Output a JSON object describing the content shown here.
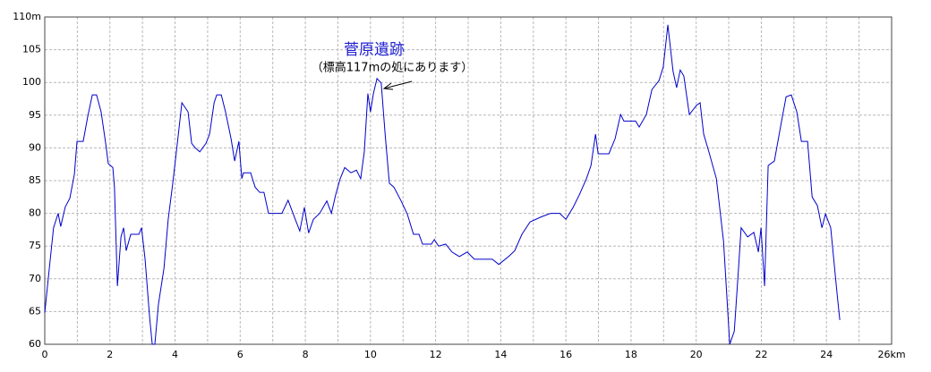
{
  "chart_data": {
    "type": "line",
    "annotations": [
      "菅原遺跡",
      "（標高117mの処にあります）"
    ],
    "xlim": [
      0,
      26
    ],
    "xticks": [
      0,
      2,
      4,
      6,
      8,
      10,
      12,
      14,
      16,
      18,
      20,
      22,
      24,
      {
        "value": 26,
        "label": "26km"
      }
    ],
    "x_minor_ticks": [
      1,
      3,
      5,
      7,
      9,
      11,
      13,
      15,
      17,
      19,
      21,
      23,
      25
    ],
    "ylim": [
      60,
      110
    ],
    "yticks": [
      60,
      65,
      70,
      75,
      80,
      85,
      90,
      95,
      100,
      105,
      {
        "value": 110,
        "label": "110m"
      }
    ],
    "grid": true,
    "color": "#0000cc",
    "x": [
      0,
      0.14,
      0.27,
      0.41,
      0.49,
      0.63,
      0.77,
      0.91,
      0.99,
      1.18,
      1.32,
      1.46,
      1.59,
      1.73,
      1.87,
      1.95,
      2.09,
      2.14,
      2.23,
      2.34,
      2.42,
      2.5,
      2.64,
      2.89,
      2.97,
      3.08,
      3.22,
      3.3,
      3.38,
      3.49,
      3.66,
      3.79,
      3.93,
      4.07,
      4.21,
      4.4,
      4.51,
      4.62,
      4.76,
      4.95,
      5.06,
      5.2,
      5.28,
      5.42,
      5.55,
      5.72,
      5.83,
      5.96,
      6.05,
      6.1,
      6.32,
      6.46,
      6.6,
      6.73,
      6.87,
      7.28,
      7.47,
      7.69,
      7.83,
      7.97,
      8.1,
      8.25,
      8.44,
      8.66,
      8.8,
      8.93,
      9.07,
      9.21,
      9.4,
      9.57,
      9.7,
      9.81,
      9.92,
      10,
      10.09,
      10.2,
      10.33,
      10.45,
      10.58,
      10.72,
      10.94,
      11.13,
      11.32,
      11.49,
      11.6,
      11.87,
      11.96,
      12.09,
      12.31,
      12.5,
      12.73,
      12.97,
      13.19,
      13.74,
      13.94,
      14.24,
      14.43,
      14.65,
      14.9,
      15.26,
      15.53,
      15.81,
      16,
      16.22,
      16.41,
      16.63,
      16.77,
      16.91,
      16.99,
      17.32,
      17.51,
      17.68,
      17.78,
      18.14,
      18.25,
      18.47,
      18.64,
      18.86,
      18.99,
      19.13,
      19.29,
      19.4,
      19.51,
      19.62,
      19.79,
      20.01,
      20.12,
      20.23,
      20.39,
      20.62,
      20.84,
      21.03,
      21.17,
      21.3,
      21.38,
      21.58,
      21.77,
      21.91,
      21.99,
      22.1,
      22.21,
      22.4,
      22.6,
      22.76,
      22.92,
      23.09,
      23.23,
      23.42,
      23.56,
      23.72,
      23.86,
      23.97,
      24.13,
      24.33,
      24.41
    ],
    "values": [
      64.8,
      71.6,
      77.8,
      80,
      78,
      81,
      82.3,
      86,
      91,
      91,
      94.8,
      98.1,
      98.1,
      95.5,
      90.7,
      87.6,
      87,
      84,
      68.9,
      76.4,
      77.8,
      74.3,
      76.8,
      76.8,
      77.8,
      73,
      64.1,
      60,
      60,
      66.1,
      71.6,
      79.1,
      84.6,
      90.7,
      96.9,
      95.5,
      90.7,
      90,
      89.4,
      90.7,
      92.1,
      96.9,
      98.1,
      98.1,
      95.5,
      91.4,
      88,
      91,
      85.3,
      86.2,
      86.2,
      84,
      83.2,
      83.2,
      80,
      80,
      82,
      79.1,
      77.3,
      80.9,
      77,
      79.1,
      80,
      81.9,
      80,
      82.8,
      85.3,
      87,
      86.2,
      86.6,
      85.3,
      89.4,
      98.3,
      95.5,
      98.3,
      100.6,
      99.9,
      92.1,
      84.6,
      84,
      81.9,
      79.9,
      76.8,
      76.8,
      75.3,
      75.3,
      76,
      75,
      75.3,
      74.1,
      73.4,
      74.1,
      73,
      73,
      72.2,
      73.4,
      74.3,
      76.8,
      78.7,
      79.5,
      80,
      80,
      79.1,
      80.9,
      82.8,
      85.3,
      87.3,
      92.1,
      89.1,
      89.1,
      91.4,
      95.1,
      94.1,
      94.1,
      93.2,
      95.1,
      98.9,
      100.3,
      102.4,
      108.8,
      101.7,
      99.2,
      101.9,
      101,
      95.1,
      96.5,
      96.9,
      92.1,
      89.4,
      85.3,
      75.7,
      60,
      62,
      71.6,
      77.8,
      76.4,
      77.1,
      74.1,
      77.8,
      68.9,
      87.3,
      88,
      93.5,
      97.8,
      98.1,
      95.5,
      91,
      91,
      82.5,
      81.2,
      77.8,
      79.9,
      77.8,
      67.5,
      63.7
    ]
  }
}
